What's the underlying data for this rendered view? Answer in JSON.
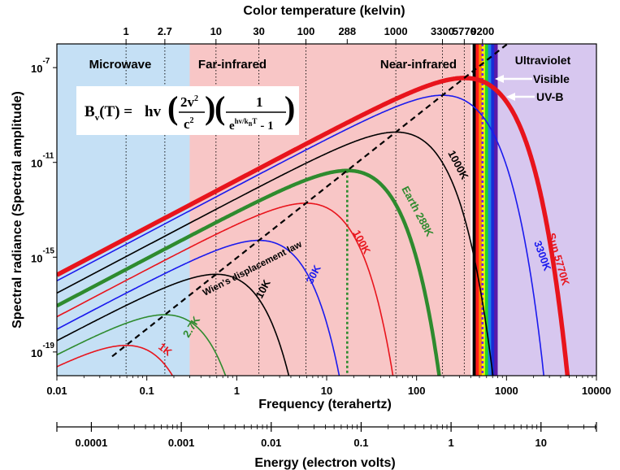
{
  "chart_data": {
    "type": "line",
    "title": "Color temperature (kelvin)",
    "xlabel": "Frequency (terahertz)",
    "ylabel": "Spectral radiance (Spectral amplitude)",
    "x_scale": "log",
    "y_scale": "log",
    "xlim": [
      0.01,
      10000
    ],
    "ylim": [
      1e-20,
      1e-06
    ],
    "x_ticks": [
      "0.01",
      "0.1",
      "1",
      "10",
      "100",
      "1000",
      "10000"
    ],
    "y_tick_labels": [
      {
        "base": "10",
        "exp": "-7",
        "value": 1e-07
      },
      {
        "base": "10",
        "exp": "-11",
        "value": 1e-11
      },
      {
        "base": "10",
        "exp": "-15",
        "value": 1e-15
      },
      {
        "base": "10",
        "exp": "-19",
        "value": 1e-19
      }
    ],
    "top_axis": {
      "label": "Color temperature (kelvin)",
      "ticks": [
        {
          "label": "1",
          "temperature_K": 1
        },
        {
          "label": "2.7",
          "temperature_K": 2.7
        },
        {
          "label": "10",
          "temperature_K": 10
        },
        {
          "label": "30",
          "temperature_K": 30
        },
        {
          "label": "100",
          "temperature_K": 100
        },
        {
          "label": "288",
          "temperature_K": 288
        },
        {
          "label": "1000",
          "temperature_K": 1000
        },
        {
          "label": "3300",
          "temperature_K": 3300
        },
        {
          "label": "5770",
          "temperature_K": 5770
        },
        {
          "label": "9200",
          "temperature_K": 9200
        }
      ]
    },
    "energy_axis": {
      "label": "Energy (electron volts)",
      "ticks": [
        {
          "label": "0.0001",
          "value": 0.0001
        },
        {
          "label": "0.001",
          "value": 0.001
        },
        {
          "label": "0.01",
          "value": 0.01
        },
        {
          "label": "0.1",
          "value": 0.1
        },
        {
          "label": "1",
          "value": 1
        },
        {
          "label": "10",
          "value": 10
        }
      ]
    },
    "regions": [
      {
        "label": "Microwave",
        "from_THz": 0.01,
        "to_THz": 0.3,
        "color": "#c5e0f5"
      },
      {
        "label": "Far-infrared",
        "from_THz": 0.3,
        "to_THz": 400,
        "color": "#f8c6c6"
      },
      {
        "label": "Near-infrared",
        "from_THz": 0.3,
        "to_THz": 400,
        "color": "#f8c6c6"
      },
      {
        "label": "Visible",
        "from_THz": 420,
        "to_THz": 790,
        "color": "#000000"
      },
      {
        "label": "Ultraviolet",
        "from_THz": 790,
        "to_THz": 10000,
        "color": "#d7c7ef"
      }
    ],
    "annotations": {
      "uvb": "UV-B",
      "visible": "Visible",
      "wien": "Wien's displacement law"
    },
    "equation": {
      "lhs": "B",
      "lhs_sub": "v",
      "lhs_rest": "(T) =",
      "hv": "hv",
      "num": "2v",
      "num_sup": "2",
      "den": "c",
      "den_sup": "2",
      "one": "1",
      "e": "e",
      "e_sup": "hv/k",
      "e_sup_sub": "B",
      "e_sup_T": "T",
      "minus_one": "- 1"
    },
    "series": [
      {
        "name": "1K",
        "temperature_K": 1,
        "color": "#e8141c",
        "width": 1.6
      },
      {
        "name": "2.7K",
        "temperature_K": 2.7,
        "color": "#2e8b2e",
        "width": 1.6
      },
      {
        "name": "10K",
        "temperature_K": 10,
        "color": "#000000",
        "width": 1.6
      },
      {
        "name": "30K",
        "temperature_K": 30,
        "color": "#1a1aee",
        "width": 1.6
      },
      {
        "name": "100K",
        "temperature_K": 100,
        "color": "#e8141c",
        "width": 1.6
      },
      {
        "name": "Earth 288K",
        "temperature_K": 288,
        "color": "#2e8b2e",
        "width": 4.5
      },
      {
        "name": "1000K",
        "temperature_K": 1000,
        "color": "#000000",
        "width": 1.6
      },
      {
        "name": "3300K",
        "temperature_K": 3300,
        "color": "#1a1aee",
        "width": 1.6
      },
      {
        "name": "Sun 5770K",
        "temperature_K": 5770,
        "color": "#e8141c",
        "width": 5.5
      }
    ],
    "grid": false
  }
}
